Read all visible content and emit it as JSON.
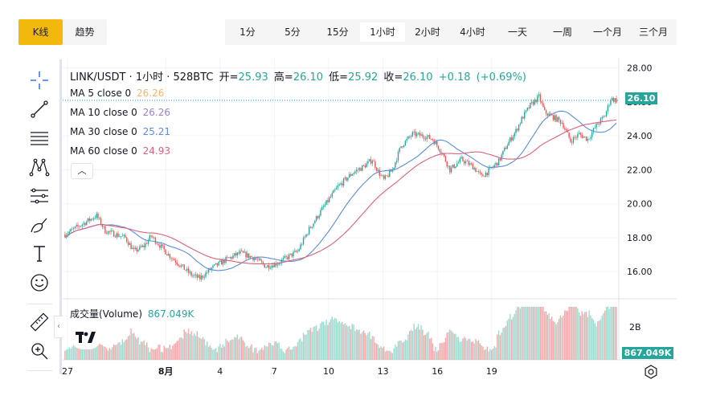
{
  "view_tabs": [
    "K线",
    "趋势"
  ],
  "timeframes": [
    "1分",
    "5分",
    "15分",
    "1小时",
    "2小时",
    "4小时",
    "一天",
    "一周",
    "一个月",
    "三个月"
  ],
  "active_timeframe": "1小时",
  "tools": [
    "crosshair-icon",
    "trendline-icon",
    "fib-lines-icon",
    "pattern-icon",
    "channel-icon",
    "brush-icon",
    "text-icon",
    "emoji-icon",
    "ruler-icon",
    "zoom-in-icon"
  ],
  "legend": {
    "title": "LINK/USDT · 1小时 · 528BTC",
    "open_label": "开=",
    "open": "25.93",
    "high_label": "高=",
    "high": "26.10",
    "low_label": "低=",
    "low": "25.92",
    "close_label": "收=",
    "close": "26.10",
    "change": "+0.18",
    "change_pct": "(+0.69%)",
    "ma": [
      {
        "label": "MA 5 close 0",
        "value": "26.26",
        "color": "#f5b673"
      },
      {
        "label": "MA 10 close 0",
        "value": "26.26",
        "color": "#9c80c4"
      },
      {
        "label": "MA 30 close 0",
        "value": "25.21",
        "color": "#5b8dd6"
      },
      {
        "label": "MA 60 close 0",
        "value": "24.93",
        "color": "#d9627a"
      }
    ],
    "volume_label": "成交量(Volume)",
    "volume_value": "867.049K"
  },
  "colors": {
    "up": "#26a69a",
    "down": "#ef5350",
    "up_vol": "#9fd8cf",
    "down_vol": "#f4a8a9"
  },
  "last_price_tag": "26.10",
  "volume_tag": "867.049K",
  "chart_data": {
    "type": "candlestick",
    "symbol": "LINK/USDT",
    "interval": "1小时",
    "y_ticks": [
      "28.00",
      "26.00",
      "24.00",
      "22.00",
      "20.00",
      "18.00",
      "16.00"
    ],
    "ylim": [
      14.4,
      28.6
    ],
    "volume_axis_tick": "2B",
    "x_tick_labels": [
      "27",
      "8月",
      "4",
      "7",
      "10",
      "13",
      "16",
      "19"
    ],
    "close_path": [
      [
        0,
        18.2
      ],
      [
        12,
        18.8
      ],
      [
        22,
        19.3
      ],
      [
        28,
        18.4
      ],
      [
        42,
        18.0
      ],
      [
        48,
        17.2
      ],
      [
        55,
        17.5
      ],
      [
        60,
        18.1
      ],
      [
        72,
        17.0
      ],
      [
        80,
        16.4
      ],
      [
        88,
        15.8
      ],
      [
        94,
        15.6
      ],
      [
        102,
        16.2
      ],
      [
        112,
        16.7
      ],
      [
        122,
        17.1
      ],
      [
        132,
        16.8
      ],
      [
        140,
        16.3
      ],
      [
        148,
        16.5
      ],
      [
        156,
        16.9
      ],
      [
        162,
        17.2
      ],
      [
        170,
        18.5
      ],
      [
        180,
        19.8
      ],
      [
        190,
        21.0
      ],
      [
        200,
        21.8
      ],
      [
        208,
        22.2
      ],
      [
        214,
        22.6
      ],
      [
        218,
        21.9
      ],
      [
        222,
        21.4
      ],
      [
        228,
        22.0
      ],
      [
        234,
        23.4
      ],
      [
        242,
        24.1
      ],
      [
        250,
        24.0
      ],
      [
        256,
        23.8
      ],
      [
        262,
        23.1
      ],
      [
        268,
        22.0
      ],
      [
        276,
        22.6
      ],
      [
        284,
        22.2
      ],
      [
        290,
        21.6
      ],
      [
        296,
        22.0
      ],
      [
        302,
        22.5
      ],
      [
        308,
        23.5
      ],
      [
        314,
        24.3
      ],
      [
        318,
        25.0
      ],
      [
        324,
        25.8
      ],
      [
        330,
        26.3
      ],
      [
        334,
        25.4
      ],
      [
        340,
        25.1
      ],
      [
        346,
        24.8
      ],
      [
        352,
        23.7
      ],
      [
        358,
        24.1
      ],
      [
        364,
        23.8
      ],
      [
        370,
        24.6
      ],
      [
        376,
        25.2
      ],
      [
        380,
        26.2
      ],
      [
        384,
        26.1
      ]
    ],
    "candle_count": 385,
    "ma_periods": [
      30,
      60
    ]
  }
}
